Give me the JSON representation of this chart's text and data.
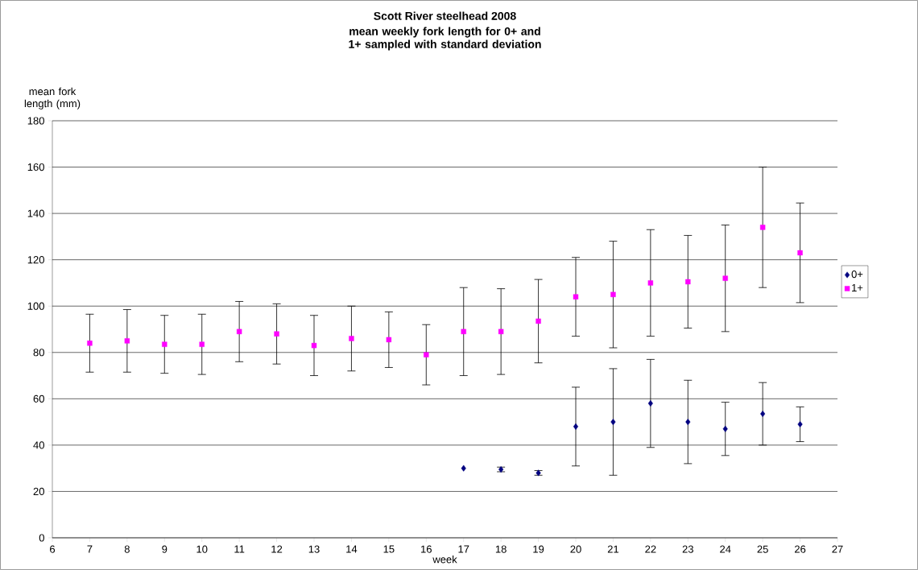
{
  "chart_data": {
    "type": "scatter",
    "title": "Scott River steelhead 2008",
    "subtitle": "mean weekly fork length for 0+ and 1+ sampled with standard deviation",
    "xlabel": "week",
    "ylabel": "mean fork length (mm)",
    "series": [
      {
        "name": "0+",
        "color": "#000080",
        "marker": "diamond",
        "x": [
          17,
          18,
          19,
          20,
          21,
          22,
          23,
          24,
          25,
          26
        ],
        "values": [
          30,
          29.5,
          28,
          48,
          50,
          58,
          50,
          47,
          53.5,
          49
        ],
        "errors": [
          null,
          1,
          1,
          17,
          23,
          19,
          18,
          11.5,
          13.5,
          7.5
        ]
      },
      {
        "name": "1+",
        "color": "#ff00ff",
        "marker": "square",
        "x": [
          7,
          8,
          9,
          10,
          11,
          12,
          13,
          14,
          15,
          16,
          17,
          18,
          19,
          20,
          21,
          22,
          23,
          24,
          25,
          26
        ],
        "values": [
          84,
          85,
          83.5,
          83.5,
          89,
          88,
          83,
          86,
          85.5,
          79,
          89,
          89,
          93.5,
          104,
          105,
          110,
          110.5,
          112,
          134,
          123
        ],
        "errors": [
          12.5,
          13.5,
          12.5,
          13,
          13,
          13,
          13,
          14,
          12,
          13,
          19,
          18.5,
          18,
          17,
          23,
          23,
          20,
          23,
          26,
          21.5
        ]
      }
    ],
    "xlim": [
      6,
      27
    ],
    "xticks": [
      6,
      7,
      8,
      9,
      10,
      11,
      12,
      13,
      14,
      15,
      16,
      17,
      18,
      19,
      20,
      21,
      22,
      23,
      24,
      25,
      26,
      27
    ],
    "ylim": [
      0,
      180
    ],
    "yticks": [
      0,
      20,
      40,
      60,
      80,
      100,
      120,
      140,
      160,
      180
    ],
    "grid": "y",
    "legend": "right"
  }
}
